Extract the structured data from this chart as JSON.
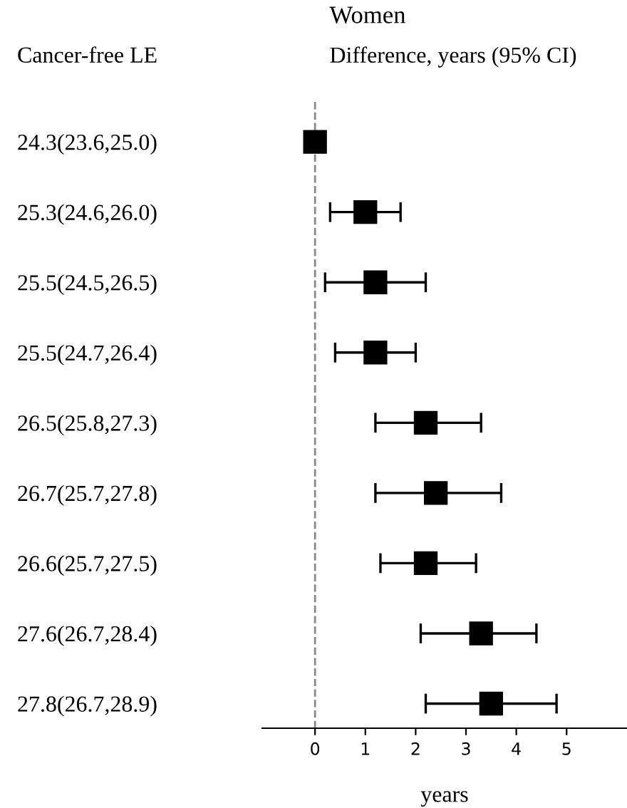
{
  "chart_data": {
    "type": "scatter",
    "orientation": "horizontal",
    "title": "Women",
    "subtitle": "Difference, years (95% CI)",
    "ylabel": "Cancer-free LE",
    "xlabel": "years",
    "categories": [
      "24.3(23.6,25.0)",
      "25.3(24.6,26.0)",
      "25.5(24.5,26.5)",
      "25.5(24.7,26.4)",
      "26.5(25.8,27.3)",
      "26.7(25.7,27.8)",
      "26.6(25.7,27.5)",
      "27.6(26.7,28.4)",
      "27.8(26.7,28.9)"
    ],
    "series": [
      {
        "color": "#000000",
        "values": [
          0,
          1.0,
          1.2,
          1.2,
          2.2,
          2.4,
          2.2,
          3.3,
          3.5
        ],
        "errors": [
          null,
          [
            0.3,
            1.7
          ],
          [
            0.2,
            2.2
          ],
          [
            0.4,
            2.0
          ],
          [
            1.2,
            3.3
          ],
          [
            1.2,
            3.7
          ],
          [
            1.3,
            3.2
          ],
          [
            2.1,
            4.4
          ],
          [
            2.2,
            4.8
          ]
        ]
      }
    ],
    "xlim": [
      -1.05,
      6.2
    ],
    "xticks": [
      0,
      1,
      2,
      3,
      4,
      5
    ],
    "marker": "square",
    "grid": false,
    "legend": false,
    "ref_lines": [
      {
        "axis": "x",
        "value": 0,
        "color": "#888888",
        "line_style": "dashed"
      }
    ]
  }
}
